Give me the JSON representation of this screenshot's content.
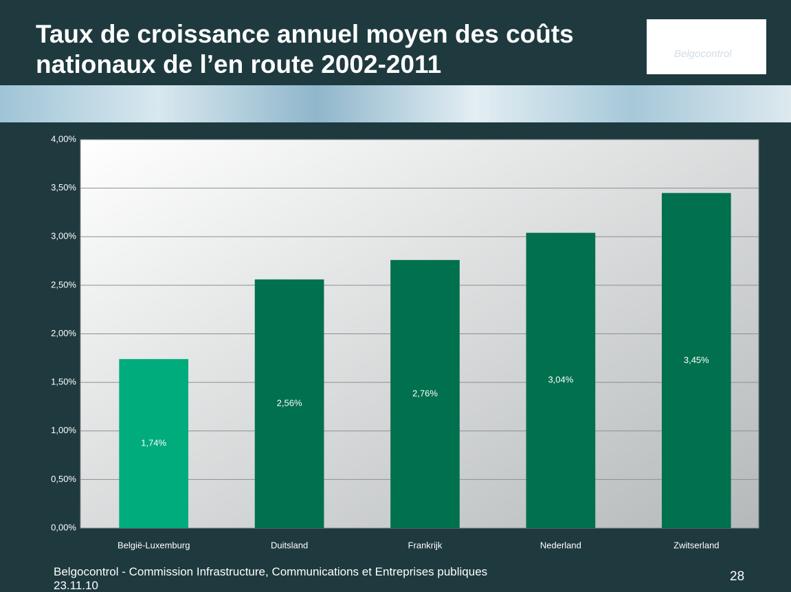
{
  "title": "Taux de croissance annuel moyen des coûts nationaux de l’en route 2002-2011",
  "logo_text": "Belgocontrol",
  "footer": {
    "text": "Belgocontrol - Commission Infrastructure, Communications et Entreprises publiques",
    "date": "23.11.10",
    "page": "28"
  },
  "chart_data": {
    "type": "bar",
    "categories": [
      "België-Luxemburg",
      "Duitsland",
      "Frankrijk",
      "Nederland",
      "Zwitserland"
    ],
    "values": [
      1.74,
      2.56,
      2.76,
      3.04,
      3.45
    ],
    "value_labels": [
      "1,74%",
      "2,56%",
      "2,76%",
      "3,04%",
      "3,45%"
    ],
    "colors": [
      "#00ab7c",
      "#00704e",
      "#00704e",
      "#00704e",
      "#00704e"
    ],
    "ylim": [
      0,
      4
    ],
    "yticks": [
      {
        "value": 0,
        "label": "0,00%"
      },
      {
        "value": 0.5,
        "label": "0,50%"
      },
      {
        "value": 1,
        "label": "1,00%"
      },
      {
        "value": 1.5,
        "label": "1,50%"
      },
      {
        "value": 2,
        "label": "2,00%"
      },
      {
        "value": 2.5,
        "label": "2,50%"
      },
      {
        "value": 3,
        "label": "3,00%"
      },
      {
        "value": 3.5,
        "label": "3,50%"
      },
      {
        "value": 4,
        "label": "4,00%"
      }
    ],
    "grid": true
  }
}
